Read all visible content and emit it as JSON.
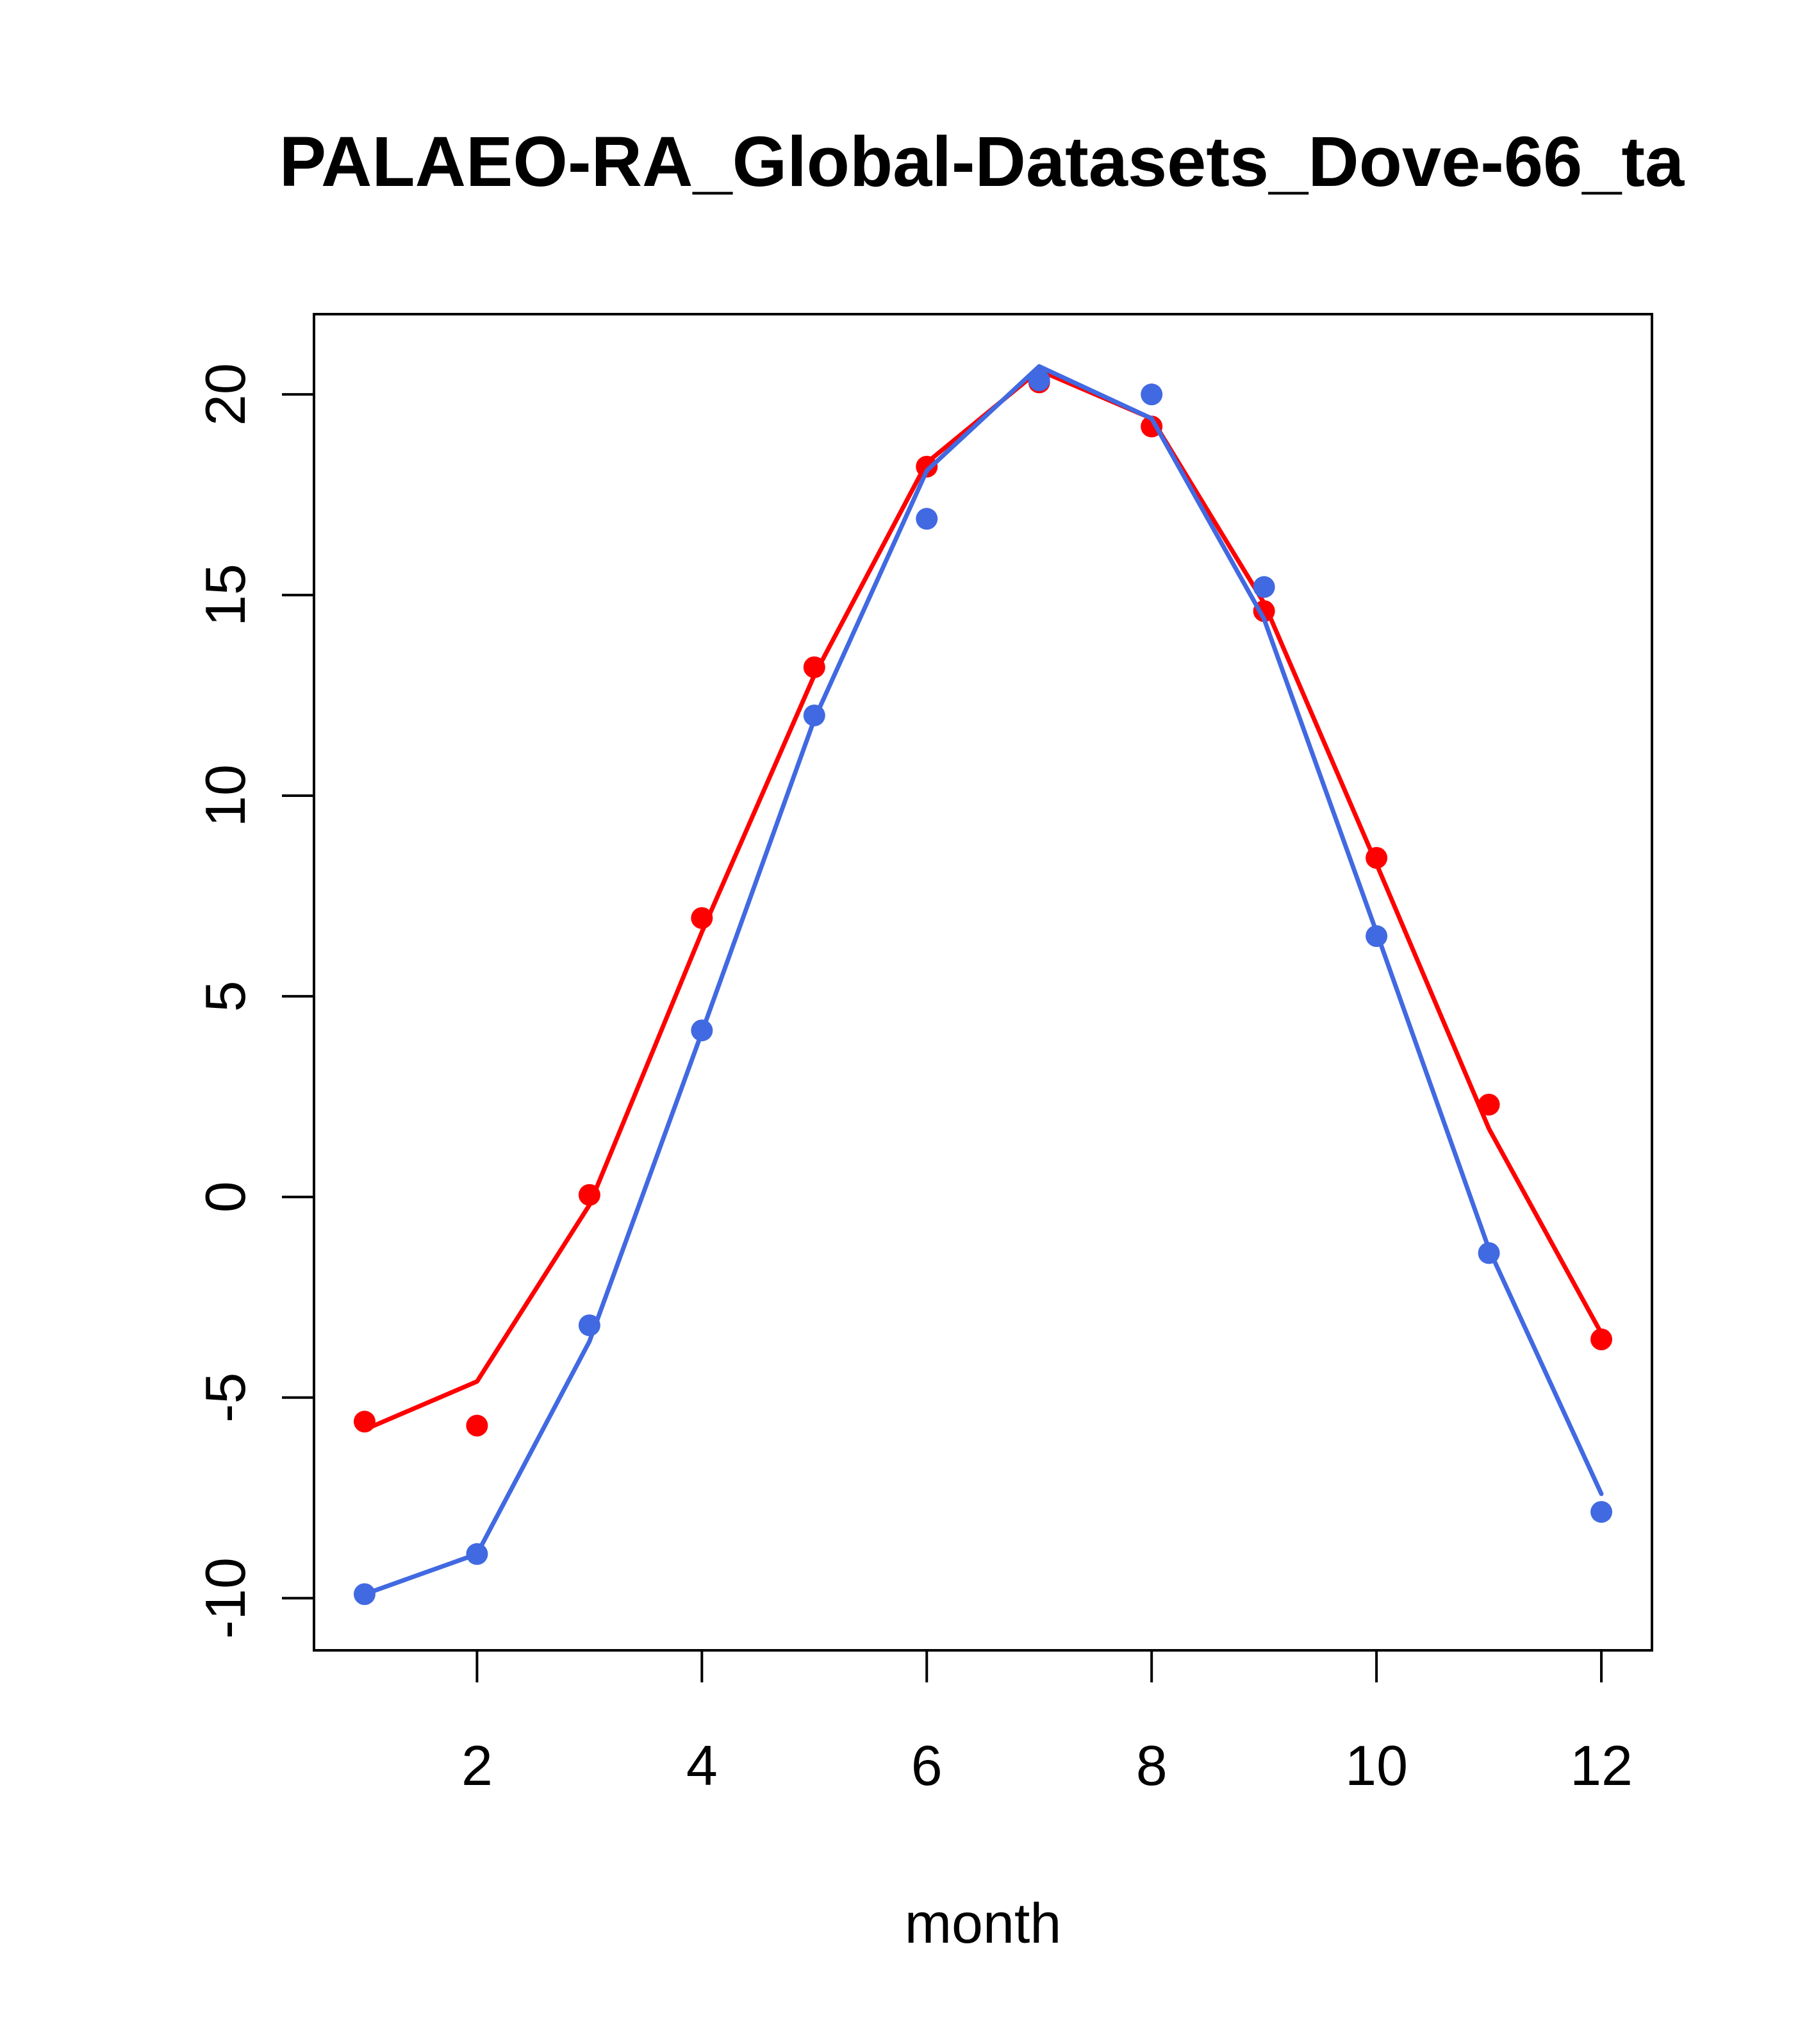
{
  "chart_data": {
    "type": "line",
    "title": "PALAEO-RA_Global-Datasets_Dove-66_ta",
    "xlabel": "month",
    "ylabel": "",
    "xlim": [
      0.55,
      12.45
    ],
    "ylim": [
      -11.3,
      22.0
    ],
    "x_ticks": [
      2,
      4,
      6,
      8,
      10,
      12
    ],
    "y_ticks": [
      -10,
      -5,
      0,
      5,
      10,
      15,
      20
    ],
    "x_tick_labels": [
      "2",
      "4",
      "6",
      "8",
      "10",
      "12"
    ],
    "y_tick_labels": [
      "-10",
      "-5",
      "0",
      "5",
      "10",
      "15",
      "20"
    ],
    "grid": false,
    "x": [
      1,
      2,
      3,
      4,
      5,
      6,
      7,
      8,
      9,
      10,
      11,
      12
    ],
    "series": [
      {
        "color": "#ff0000",
        "line": [
          -5.8,
          -4.6,
          -0.2,
          6.6,
          13.0,
          18.3,
          20.6,
          19.4,
          14.8,
          8.3,
          1.7,
          -3.4
        ],
        "points": [
          -5.6,
          -5.7,
          0.05,
          6.95,
          13.2,
          18.2,
          20.3,
          19.2,
          14.6,
          8.45,
          2.3,
          -3.55
        ]
      },
      {
        "color": "#4169e1",
        "line": [
          -9.9,
          -8.9,
          -3.6,
          4.1,
          11.9,
          18.1,
          20.7,
          19.4,
          14.4,
          6.6,
          -1.3,
          -7.4
        ],
        "points": [
          -9.9,
          -8.9,
          -3.2,
          4.15,
          12.0,
          16.9,
          20.35,
          20.0,
          15.2,
          6.5,
          -1.4,
          -7.85
        ]
      }
    ]
  }
}
